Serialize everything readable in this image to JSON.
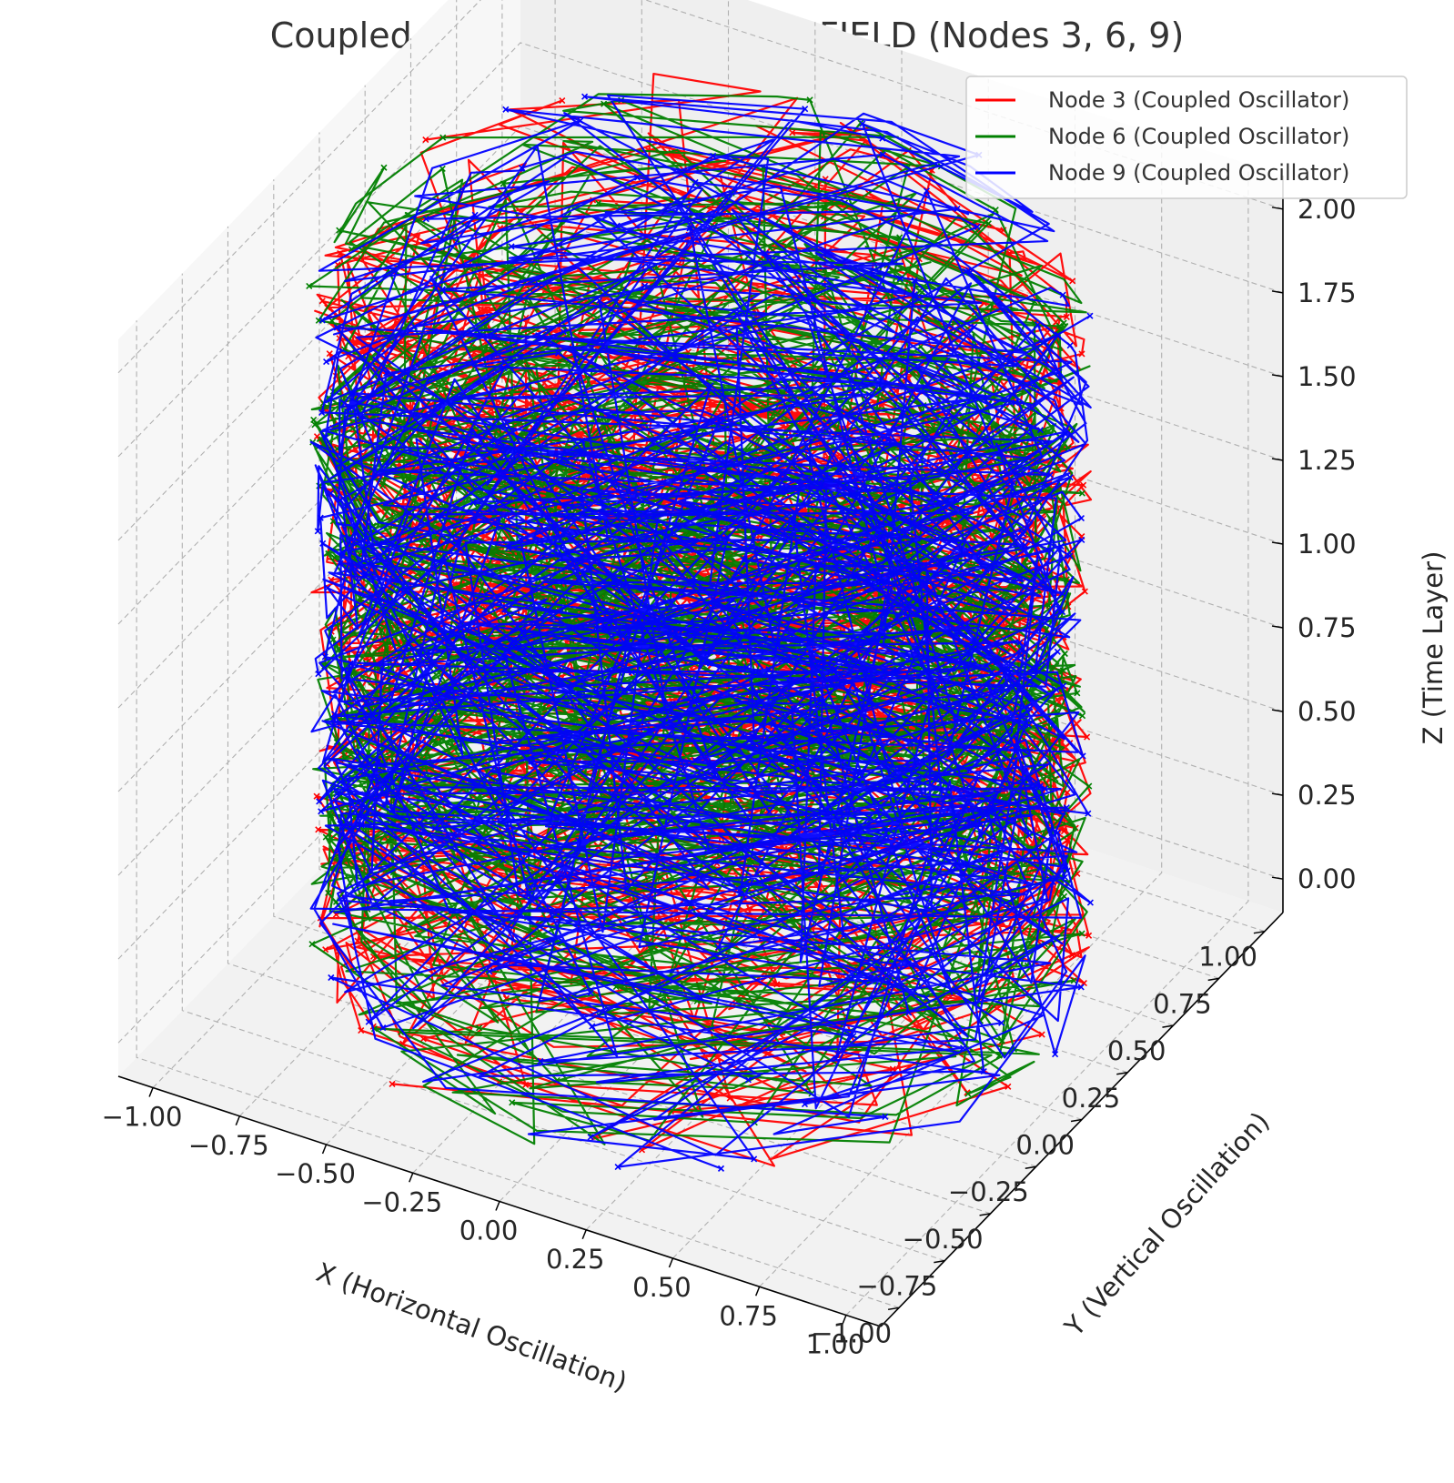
{
  "chart_data": {
    "type": "line",
    "projection": "3d",
    "title": "Coupled Oscillations in Circular FIELD (Nodes 3, 6, 9)",
    "xlabel": "X (Horizontal Oscillation)",
    "ylabel": "Y (Vertical Oscillation)",
    "zlabel": "Z (Time Layer)",
    "xlim": [
      -1.1,
      1.1
    ],
    "ylim": [
      -1.1,
      1.1
    ],
    "zlim": [
      -0.1,
      2.1
    ],
    "grid": true,
    "legend_position": "top-right",
    "x_ticks": [
      "−1.00",
      "−0.75",
      "−0.50",
      "−0.25",
      "0.00",
      "0.25",
      "0.50",
      "0.75",
      "1.00"
    ],
    "y_ticks": [
      "−1.00",
      "−0.75",
      "−0.50",
      "−0.25",
      "0.00",
      "0.25",
      "0.50",
      "0.75",
      "1.00"
    ],
    "z_ticks": [
      "0.00",
      "0.25",
      "0.50",
      "0.75",
      "1.00",
      "1.25",
      "1.50",
      "1.75",
      "2.00"
    ],
    "series": [
      {
        "name": "Node 3 (Coupled Oscillator)",
        "color": "#ff0000",
        "radius": 1.0,
        "z_range": [
          0.0,
          2.0
        ],
        "marker": "x"
      },
      {
        "name": "Node 6 (Coupled Oscillator)",
        "color": "#008000",
        "radius": 1.0,
        "z_range": [
          0.0,
          2.0
        ],
        "marker": "x"
      },
      {
        "name": "Node 9 (Coupled Oscillator)",
        "color": "#0000ff",
        "radius": 1.0,
        "z_range": [
          0.0,
          2.0
        ],
        "marker": "x"
      }
    ]
  }
}
